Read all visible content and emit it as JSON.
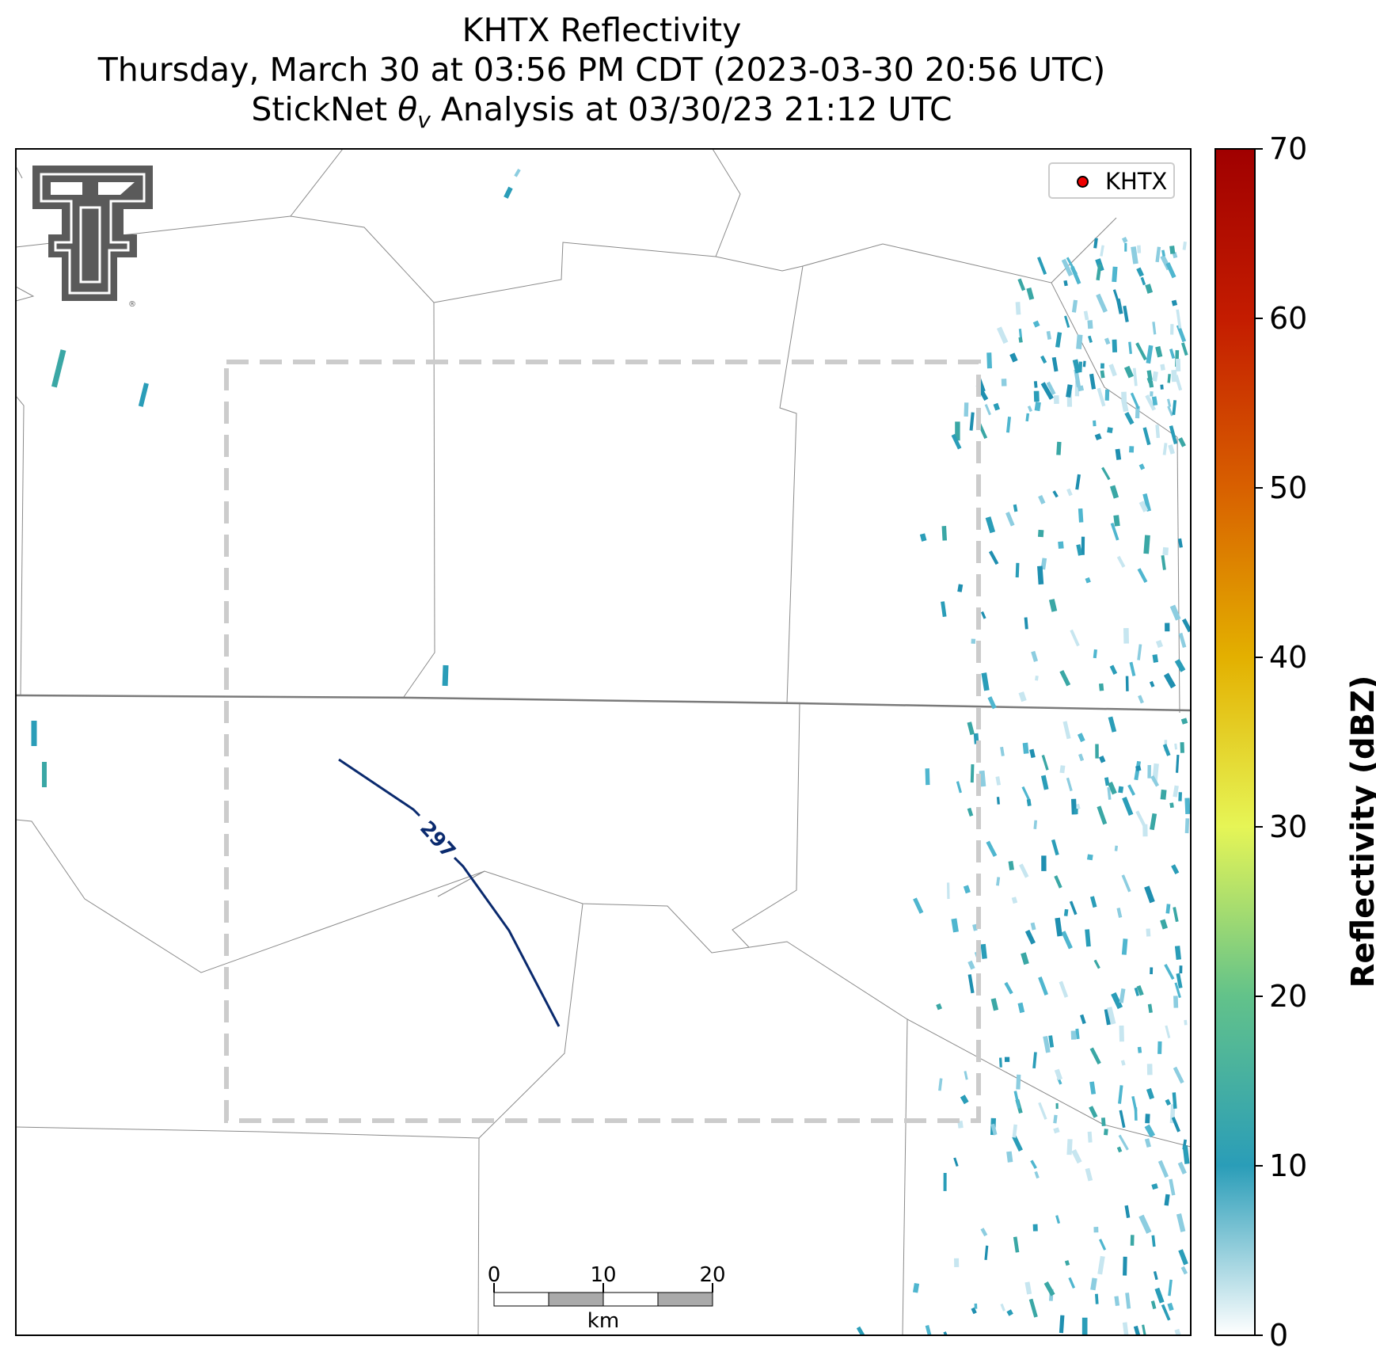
{
  "title": {
    "line1": "KHTX Reflectivity",
    "line2": "Thursday, March 30 at 03:56 PM CDT (2023-03-30 20:56 UTC)",
    "line3_prefix": "StickNet ",
    "line3_symbol": "θ",
    "line3_subscript": "v",
    "line3_suffix": " Analysis at 03/30/23 21:12 UTC"
  },
  "legend": {
    "label": "KHTX",
    "marker_color": "#ee0000"
  },
  "contour": {
    "label": "297",
    "color": "#0a2a6e"
  },
  "colorbar": {
    "label": "Reflectivity (dBZ)",
    "min": 0,
    "max": 70,
    "ticks": [
      "0",
      "10",
      "20",
      "30",
      "40",
      "50",
      "60",
      "70"
    ],
    "colors": [
      "#ffffff",
      "#2a9db8",
      "#62c28a",
      "#e6f556",
      "#e3b000",
      "#d86000",
      "#c41c00",
      "#a00000"
    ]
  },
  "scale_bar": {
    "ticks": [
      "0",
      "10",
      "20"
    ],
    "unit": "km"
  },
  "logo": {
    "name": "Texas Tech double-T",
    "color": "#5a5a5a"
  },
  "analysis_box": {
    "color": "#cccccc"
  }
}
